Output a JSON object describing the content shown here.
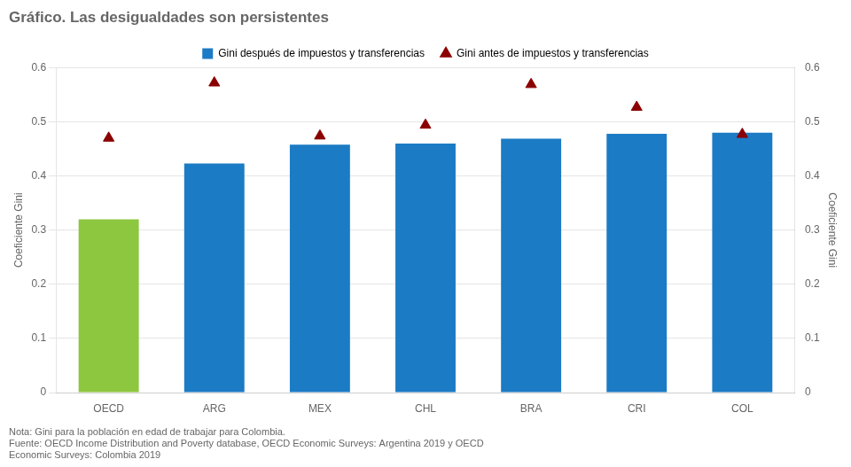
{
  "chart_data": {
    "type": "bar",
    "title": "Gráfico. Las desigualdades son persistentes",
    "categories": [
      "OECD",
      "ARG",
      "MEX",
      "CHL",
      "BRA",
      "CRI",
      "COL"
    ],
    "series": [
      {
        "name": "Gini después de impuestos y transferencias",
        "type": "bar",
        "color": "#1b7bc4",
        "colors": [
          "#8dc63f",
          "#1b7bc4",
          "#1b7bc4",
          "#1b7bc4",
          "#1b7bc4",
          "#1b7bc4",
          "#1b7bc4"
        ],
        "values": [
          0.32,
          0.423,
          0.458,
          0.46,
          0.469,
          0.478,
          0.48
        ]
      },
      {
        "name": "Gini antes de impuestos y transferencias",
        "type": "scatter",
        "marker": "triangle",
        "color": "#8b0000",
        "values": [
          0.47,
          0.572,
          0.474,
          0.494,
          0.569,
          0.527,
          0.477
        ]
      }
    ],
    "ylabel": "Coeficiente Gini",
    "y2label": "Coeficiente Gini",
    "ylim": [
      0,
      0.6
    ],
    "yticks": [
      0,
      0.1,
      0.2,
      0.3,
      0.4,
      0.5,
      0.6
    ],
    "y2lim": [
      0,
      0.6
    ],
    "y2ticks": [
      0,
      0.1,
      0.2,
      0.3,
      0.4,
      0.5,
      0.6
    ],
    "grid": true,
    "legend": "top",
    "notes": [
      "Nota: Gini para la población en edad de trabajar para Colombia.",
      "Fuente: OECD Income Distribution and Poverty database, OECD Economic Surveys: Argentina 2019 y OECD",
      "Economic Surveys: Colombia 2019"
    ]
  }
}
